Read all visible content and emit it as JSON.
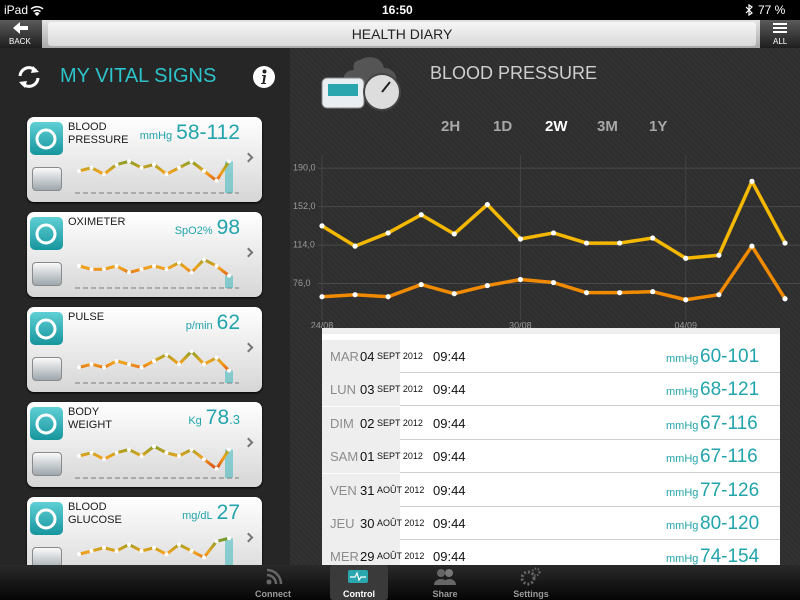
{
  "status_bar": {
    "carrier": "iPad",
    "time": "16:50",
    "battery": "77 %"
  },
  "nav_bar": {
    "back": "BACK",
    "title": "HEALTH DIARY",
    "menu": "ALL"
  },
  "vitals": {
    "title": "MY VITAL SIGNS",
    "cards": [
      {
        "name": "BLOOD PRESSURE",
        "unit": "mmHg",
        "value": "58-112",
        "trend": [
          5,
          6,
          4,
          7,
          8,
          6,
          7,
          4,
          6,
          8,
          5,
          2,
          8
        ]
      },
      {
        "name": "OXIMETER",
        "unit": "SpO2%",
        "value": "98",
        "trend": [
          5,
          4,
          4,
          5,
          3,
          4,
          5,
          4,
          6,
          3,
          7,
          5,
          2
        ]
      },
      {
        "name": "PULSE",
        "unit": "p/min",
        "value": "62",
        "trend": [
          3,
          4,
          3,
          5,
          4,
          3,
          5,
          7,
          4,
          8,
          4,
          6,
          2
        ]
      },
      {
        "name": "BODY WEIGHT",
        "unit": "Kg",
        "value": "78",
        "decimal": ".3",
        "trend": [
          5,
          6,
          4,
          6,
          7,
          5,
          8,
          6,
          5,
          7,
          4,
          1,
          7
        ]
      },
      {
        "name": "BLOOD GLUCOSE",
        "unit": "mg/dL",
        "value": "27",
        "trend": [
          4,
          5,
          6,
          5,
          7,
          5,
          6,
          4,
          7,
          5,
          3,
          8,
          9
        ]
      }
    ]
  },
  "detail": {
    "title": "BLOOD PRESSURE",
    "ranges": [
      "2H",
      "1D",
      "2W",
      "3M",
      "1Y"
    ],
    "selected_range": "2W"
  },
  "chart_data": {
    "type": "line",
    "categories": [
      "24/08",
      null,
      null,
      null,
      null,
      null,
      "30/08",
      null,
      null,
      null,
      null,
      "04/09",
      null,
      null,
      null
    ],
    "series": [
      {
        "color": "#f5b800",
        "values": [
          133,
          113,
          126,
          144,
          125,
          154,
          120,
          126,
          116,
          116,
          121,
          101,
          104,
          177,
          116
        ]
      },
      {
        "color": "#f08a00",
        "values": [
          63,
          65,
          63,
          75,
          66,
          74,
          80,
          77,
          67,
          67,
          68,
          60,
          65,
          113,
          61
        ]
      }
    ],
    "ylim": [
      40,
      203
    ],
    "yticks": [
      {
        "value": 76,
        "label": "76,0"
      },
      {
        "value": 114,
        "label": "114,0"
      },
      {
        "value": 152,
        "label": "152,0"
      },
      {
        "value": 190,
        "label": "190,0"
      }
    ],
    "grid": true
  },
  "table": {
    "rows": [
      {
        "day": "MAR",
        "date": "04",
        "month": "SEPT 2012",
        "time": "09:44",
        "unit": "mmHg",
        "value": "60-101"
      },
      {
        "day": "LUN",
        "date": "03",
        "month": "SEPT 2012",
        "time": "09:44",
        "unit": "mmHg",
        "value": "68-121"
      },
      {
        "day": "DIM",
        "date": "02",
        "month": "SEPT 2012",
        "time": "09:44",
        "unit": "mmHg",
        "value": "67-116"
      },
      {
        "day": "SAM",
        "date": "01",
        "month": "SEPT 2012",
        "time": "09:44",
        "unit": "mmHg",
        "value": "67-116"
      },
      {
        "day": "VEN",
        "date": "31",
        "month": "AOÛT 2012",
        "time": "09:44",
        "unit": "mmHg",
        "value": "77-126"
      },
      {
        "day": "JEU",
        "date": "30",
        "month": "AOÛT 2012",
        "time": "09:44",
        "unit": "mmHg",
        "value": "80-120"
      },
      {
        "day": "MER",
        "date": "29",
        "month": "AOÛT 2012",
        "time": "09:44",
        "unit": "mmHg",
        "value": "74-154"
      }
    ]
  },
  "tab_bar": {
    "tabs": [
      "Connect",
      "Control",
      "Share",
      "Settings"
    ],
    "selected": "Control"
  }
}
